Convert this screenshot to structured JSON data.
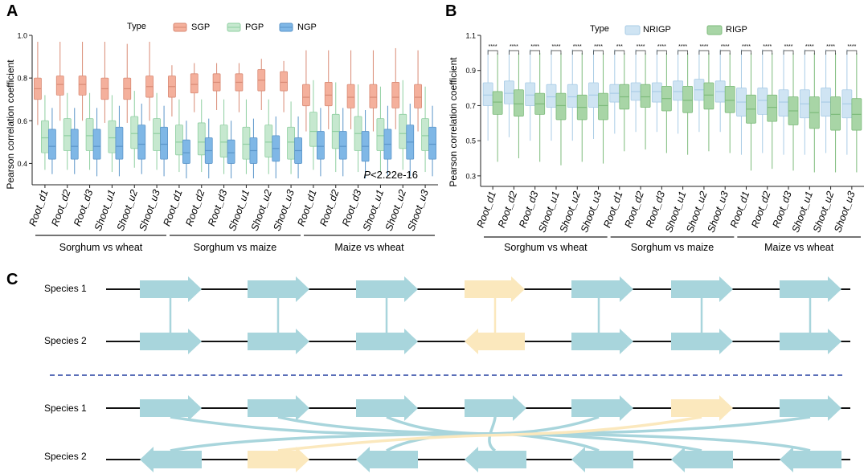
{
  "panels": {
    "A": {
      "label": "A",
      "legend": {
        "title": "Type",
        "entries": [
          "SGP",
          "PGP",
          "NGP"
        ]
      },
      "p_text": {
        "prefix": "P",
        "suffix": "<2.22e-16"
      },
      "groups": [
        "Sorghum vs wheat",
        "Sorghum vs maize",
        "Maize vs wheat"
      ]
    },
    "B": {
      "label": "B",
      "legend": {
        "title": "Type",
        "entries": [
          "NRIGP",
          "RIGP"
        ]
      },
      "groups": [
        "Sorghum vs wheat",
        "Sorghum vs maize",
        "Maize vs wheat"
      ]
    },
    "C": {
      "label": "C",
      "species1": "Species 1",
      "species2": "Species 2"
    }
  },
  "colors": {
    "sgp": "#f4b09c",
    "sgp_line": "#d98a75",
    "pgp": "#c6e8cf",
    "pgp_line": "#8fcfa1",
    "ngp": "#7fb7e6",
    "ngp_line": "#5b95c9",
    "nrigp": "#cfe4f3",
    "nrigp_line": "#a9cce6",
    "rigp": "#a8d5a6",
    "rigp_line": "#7dbb7b",
    "gene": "#a8d5dc",
    "gene_inv": "#fbe8bd"
  },
  "chart_data": [
    {
      "type": "boxplot",
      "panel": "A",
      "ylabel": "Pearson correlation coefficient",
      "ylim": [
        0.3,
        1.0
      ],
      "yticks": [
        0.4,
        0.6,
        0.8,
        1.0
      ],
      "categories": [
        "Root_d1",
        "Root_d2",
        "Root_d3",
        "Shoot_u1",
        "Shoot_u2",
        "Shoot_u3",
        "Root_d1",
        "Root_d2",
        "Root_d3",
        "Shoot_u1",
        "Shoot_u2",
        "Shoot_u3",
        "Root_d1",
        "Root_d2",
        "Root_d3",
        "Shoot_u1",
        "Shoot_u2",
        "Shoot_u3"
      ],
      "groups": [
        "Sorghum vs wheat",
        "Sorghum vs maize",
        "Maize vs wheat"
      ],
      "series": [
        {
          "name": "SGP",
          "boxes": [
            {
              "whislo": 0.58,
              "q1": 0.7,
              "med": 0.75,
              "q3": 0.8,
              "whishi": 0.97
            },
            {
              "whislo": 0.6,
              "q1": 0.72,
              "med": 0.77,
              "q3": 0.81,
              "whishi": 0.97
            },
            {
              "whislo": 0.6,
              "q1": 0.72,
              "med": 0.77,
              "q3": 0.81,
              "whishi": 0.97
            },
            {
              "whislo": 0.59,
              "q1": 0.7,
              "med": 0.75,
              "q3": 0.8,
              "whishi": 0.97
            },
            {
              "whislo": 0.59,
              "q1": 0.7,
              "med": 0.75,
              "q3": 0.8,
              "whishi": 0.96
            },
            {
              "whislo": 0.6,
              "q1": 0.71,
              "med": 0.76,
              "q3": 0.81,
              "whishi": 0.97
            },
            {
              "whislo": 0.62,
              "q1": 0.71,
              "med": 0.76,
              "q3": 0.81,
              "whishi": 0.86
            },
            {
              "whislo": 0.64,
              "q1": 0.73,
              "med": 0.77,
              "q3": 0.82,
              "whishi": 0.87
            },
            {
              "whislo": 0.65,
              "q1": 0.74,
              "med": 0.78,
              "q3": 0.82,
              "whishi": 0.87
            },
            {
              "whislo": 0.64,
              "q1": 0.74,
              "med": 0.78,
              "q3": 0.82,
              "whishi": 0.87
            },
            {
              "whislo": 0.65,
              "q1": 0.74,
              "med": 0.79,
              "q3": 0.84,
              "whishi": 0.89
            },
            {
              "whislo": 0.64,
              "q1": 0.74,
              "med": 0.78,
              "q3": 0.83,
              "whishi": 0.88
            },
            {
              "whislo": 0.55,
              "q1": 0.67,
              "med": 0.71,
              "q3": 0.77,
              "whishi": 0.93
            },
            {
              "whislo": 0.56,
              "q1": 0.67,
              "med": 0.72,
              "q3": 0.78,
              "whishi": 0.93
            },
            {
              "whislo": 0.56,
              "q1": 0.66,
              "med": 0.71,
              "q3": 0.77,
              "whishi": 0.93
            },
            {
              "whislo": 0.55,
              "q1": 0.66,
              "med": 0.71,
              "q3": 0.77,
              "whishi": 0.93
            },
            {
              "whislo": 0.56,
              "q1": 0.66,
              "med": 0.71,
              "q3": 0.78,
              "whishi": 0.94
            },
            {
              "whislo": 0.55,
              "q1": 0.66,
              "med": 0.71,
              "q3": 0.77,
              "whishi": 0.93
            }
          ]
        },
        {
          "name": "PGP",
          "boxes": [
            {
              "whislo": 0.37,
              "q1": 0.45,
              "med": 0.52,
              "q3": 0.6,
              "whishi": 0.72
            },
            {
              "whislo": 0.37,
              "q1": 0.46,
              "med": 0.53,
              "q3": 0.61,
              "whishi": 0.73
            },
            {
              "whislo": 0.37,
              "q1": 0.46,
              "med": 0.53,
              "q3": 0.61,
              "whishi": 0.73
            },
            {
              "whislo": 0.36,
              "q1": 0.45,
              "med": 0.52,
              "q3": 0.6,
              "whishi": 0.72
            },
            {
              "whislo": 0.38,
              "q1": 0.47,
              "med": 0.54,
              "q3": 0.62,
              "whishi": 0.74
            },
            {
              "whislo": 0.37,
              "q1": 0.46,
              "med": 0.54,
              "q3": 0.61,
              "whishi": 0.73
            },
            {
              "whislo": 0.36,
              "q1": 0.44,
              "med": 0.5,
              "q3": 0.58,
              "whishi": 0.7
            },
            {
              "whislo": 0.36,
              "q1": 0.44,
              "med": 0.5,
              "q3": 0.59,
              "whishi": 0.7
            },
            {
              "whislo": 0.35,
              "q1": 0.43,
              "med": 0.5,
              "q3": 0.58,
              "whishi": 0.7
            },
            {
              "whislo": 0.35,
              "q1": 0.42,
              "med": 0.49,
              "q3": 0.57,
              "whishi": 0.7
            },
            {
              "whislo": 0.35,
              "q1": 0.43,
              "med": 0.5,
              "q3": 0.58,
              "whishi": 0.7
            },
            {
              "whislo": 0.35,
              "q1": 0.42,
              "med": 0.5,
              "q3": 0.57,
              "whishi": 0.69
            },
            {
              "whislo": 0.37,
              "q1": 0.48,
              "med": 0.55,
              "q3": 0.64,
              "whishi": 0.79
            },
            {
              "whislo": 0.36,
              "q1": 0.47,
              "med": 0.55,
              "q3": 0.63,
              "whishi": 0.78
            },
            {
              "whislo": 0.36,
              "q1": 0.46,
              "med": 0.54,
              "q3": 0.62,
              "whishi": 0.77
            },
            {
              "whislo": 0.36,
              "q1": 0.46,
              "med": 0.53,
              "q3": 0.61,
              "whishi": 0.76
            },
            {
              "whislo": 0.37,
              "q1": 0.47,
              "med": 0.54,
              "q3": 0.63,
              "whishi": 0.79
            },
            {
              "whislo": 0.36,
              "q1": 0.46,
              "med": 0.53,
              "q3": 0.61,
              "whishi": 0.76
            }
          ]
        },
        {
          "name": "NGP",
          "boxes": [
            {
              "whislo": 0.35,
              "q1": 0.42,
              "med": 0.48,
              "q3": 0.56,
              "whishi": 0.66
            },
            {
              "whislo": 0.35,
              "q1": 0.42,
              "med": 0.48,
              "q3": 0.56,
              "whishi": 0.66
            },
            {
              "whislo": 0.34,
              "q1": 0.42,
              "med": 0.48,
              "q3": 0.56,
              "whishi": 0.66
            },
            {
              "whislo": 0.34,
              "q1": 0.42,
              "med": 0.48,
              "q3": 0.57,
              "whishi": 0.67
            },
            {
              "whislo": 0.35,
              "q1": 0.42,
              "med": 0.49,
              "q3": 0.58,
              "whishi": 0.68
            },
            {
              "whislo": 0.34,
              "q1": 0.42,
              "med": 0.49,
              "q3": 0.57,
              "whishi": 0.67
            },
            {
              "whislo": 0.33,
              "q1": 0.4,
              "med": 0.45,
              "q3": 0.51,
              "whishi": 0.6
            },
            {
              "whislo": 0.33,
              "q1": 0.4,
              "med": 0.46,
              "q3": 0.52,
              "whishi": 0.61
            },
            {
              "whislo": 0.33,
              "q1": 0.4,
              "med": 0.45,
              "q3": 0.51,
              "whishi": 0.6
            },
            {
              "whislo": 0.33,
              "q1": 0.4,
              "med": 0.46,
              "q3": 0.52,
              "whishi": 0.61
            },
            {
              "whislo": 0.33,
              "q1": 0.41,
              "med": 0.47,
              "q3": 0.53,
              "whishi": 0.62
            },
            {
              "whislo": 0.33,
              "q1": 0.4,
              "med": 0.46,
              "q3": 0.52,
              "whishi": 0.62
            },
            {
              "whislo": 0.34,
              "q1": 0.42,
              "med": 0.48,
              "q3": 0.55,
              "whishi": 0.66
            },
            {
              "whislo": 0.34,
              "q1": 0.42,
              "med": 0.48,
              "q3": 0.55,
              "whishi": 0.66
            },
            {
              "whislo": 0.33,
              "q1": 0.41,
              "med": 0.48,
              "q3": 0.55,
              "whishi": 0.65
            },
            {
              "whislo": 0.34,
              "q1": 0.42,
              "med": 0.49,
              "q3": 0.56,
              "whishi": 0.67
            },
            {
              "whislo": 0.34,
              "q1": 0.42,
              "med": 0.5,
              "q3": 0.58,
              "whishi": 0.68
            },
            {
              "whislo": 0.34,
              "q1": 0.42,
              "med": 0.49,
              "q3": 0.57,
              "whishi": 0.67
            }
          ]
        }
      ]
    },
    {
      "type": "boxplot",
      "panel": "B",
      "ylabel": "Pearson correlation coefficient",
      "ylim": [
        0.24,
        1.1
      ],
      "yticks": [
        0.3,
        0.5,
        0.7,
        0.9,
        1.1
      ],
      "categories": [
        "Root_d1",
        "Root_d2",
        "Root_d3",
        "Shoot_u1",
        "Shoot_u2",
        "Shoot_u3",
        "Root_d1",
        "Root_d2",
        "Root_d3",
        "Shoot_u1",
        "Shoot_u2",
        "Shoot_u3",
        "Root_d1",
        "Root_d2",
        "Root_d3",
        "Shoot_u1",
        "Shoot_u2",
        "Shoot_u3"
      ],
      "groups": [
        "Sorghum vs wheat",
        "Sorghum vs maize",
        "Maize vs wheat"
      ],
      "significance": [
        "****",
        "****",
        "****",
        "****",
        "****",
        "****",
        "***",
        "****",
        "****",
        "****",
        "****",
        "****",
        "****",
        "****",
        "****",
        "****",
        "****",
        "****"
      ],
      "series": [
        {
          "name": "NRIGP",
          "boxes": [
            {
              "whislo": 0.5,
              "q1": 0.7,
              "med": 0.76,
              "q3": 0.83,
              "whishi": 1.02
            },
            {
              "whislo": 0.52,
              "q1": 0.71,
              "med": 0.77,
              "q3": 0.84,
              "whishi": 1.02
            },
            {
              "whislo": 0.5,
              "q1": 0.7,
              "med": 0.76,
              "q3": 0.83,
              "whishi": 1.02
            },
            {
              "whislo": 0.5,
              "q1": 0.69,
              "med": 0.75,
              "q3": 0.82,
              "whishi": 1.02
            },
            {
              "whislo": 0.5,
              "q1": 0.69,
              "med": 0.75,
              "q3": 0.82,
              "whishi": 1.02
            },
            {
              "whislo": 0.51,
              "q1": 0.69,
              "med": 0.76,
              "q3": 0.83,
              "whishi": 1.02
            },
            {
              "whislo": 0.54,
              "q1": 0.72,
              "med": 0.77,
              "q3": 0.82,
              "whishi": 1.02
            },
            {
              "whislo": 0.55,
              "q1": 0.73,
              "med": 0.78,
              "q3": 0.83,
              "whishi": 1.02
            },
            {
              "whislo": 0.55,
              "q1": 0.72,
              "med": 0.78,
              "q3": 0.83,
              "whishi": 1.02
            },
            {
              "whislo": 0.54,
              "q1": 0.73,
              "med": 0.78,
              "q3": 0.84,
              "whishi": 1.02
            },
            {
              "whislo": 0.55,
              "q1": 0.73,
              "med": 0.79,
              "q3": 0.85,
              "whishi": 1.02
            },
            {
              "whislo": 0.55,
              "q1": 0.72,
              "med": 0.78,
              "q3": 0.84,
              "whishi": 1.02
            },
            {
              "whislo": 0.42,
              "q1": 0.64,
              "med": 0.72,
              "q3": 0.8,
              "whishi": 1.02
            },
            {
              "whislo": 0.43,
              "q1": 0.65,
              "med": 0.73,
              "q3": 0.8,
              "whishi": 1.02
            },
            {
              "whislo": 0.42,
              "q1": 0.64,
              "med": 0.72,
              "q3": 0.79,
              "whishi": 1.02
            },
            {
              "whislo": 0.42,
              "q1": 0.63,
              "med": 0.71,
              "q3": 0.79,
              "whishi": 1.02
            },
            {
              "whislo": 0.43,
              "q1": 0.64,
              "med": 0.72,
              "q3": 0.8,
              "whishi": 1.02
            },
            {
              "whislo": 0.42,
              "q1": 0.63,
              "med": 0.71,
              "q3": 0.79,
              "whishi": 1.02
            }
          ]
        },
        {
          "name": "RIGP",
          "boxes": [
            {
              "whislo": 0.38,
              "q1": 0.65,
              "med": 0.72,
              "q3": 0.78,
              "whishi": 1.0
            },
            {
              "whislo": 0.4,
              "q1": 0.64,
              "med": 0.71,
              "q3": 0.79,
              "whishi": 1.0
            },
            {
              "whislo": 0.38,
              "q1": 0.65,
              "med": 0.71,
              "q3": 0.77,
              "whishi": 1.0
            },
            {
              "whislo": 0.36,
              "q1": 0.62,
              "med": 0.7,
              "q3": 0.77,
              "whishi": 1.0
            },
            {
              "whislo": 0.38,
              "q1": 0.62,
              "med": 0.69,
              "q3": 0.76,
              "whishi": 1.0
            },
            {
              "whislo": 0.37,
              "q1": 0.62,
              "med": 0.7,
              "q3": 0.77,
              "whishi": 1.0
            },
            {
              "whislo": 0.44,
              "q1": 0.68,
              "med": 0.75,
              "q3": 0.82,
              "whishi": 1.0
            },
            {
              "whislo": 0.45,
              "q1": 0.69,
              "med": 0.75,
              "q3": 0.82,
              "whishi": 1.0
            },
            {
              "whislo": 0.43,
              "q1": 0.67,
              "med": 0.74,
              "q3": 0.81,
              "whishi": 1.0
            },
            {
              "whislo": 0.42,
              "q1": 0.66,
              "med": 0.73,
              "q3": 0.81,
              "whishi": 1.0
            },
            {
              "whislo": 0.44,
              "q1": 0.68,
              "med": 0.76,
              "q3": 0.83,
              "whishi": 1.0
            },
            {
              "whislo": 0.43,
              "q1": 0.66,
              "med": 0.73,
              "q3": 0.81,
              "whishi": 1.0
            },
            {
              "whislo": 0.33,
              "q1": 0.6,
              "med": 0.68,
              "q3": 0.76,
              "whishi": 1.0
            },
            {
              "whislo": 0.34,
              "q1": 0.61,
              "med": 0.69,
              "q3": 0.76,
              "whishi": 1.0
            },
            {
              "whislo": 0.33,
              "q1": 0.59,
              "med": 0.67,
              "q3": 0.75,
              "whishi": 1.0
            },
            {
              "whislo": 0.32,
              "q1": 0.57,
              "med": 0.66,
              "q3": 0.75,
              "whishi": 1.0
            },
            {
              "whislo": 0.32,
              "q1": 0.56,
              "med": 0.65,
              "q3": 0.75,
              "whishi": 1.0
            },
            {
              "whislo": 0.32,
              "q1": 0.56,
              "med": 0.65,
              "q3": 0.74,
              "whishi": 1.0
            }
          ]
        }
      ]
    }
  ]
}
